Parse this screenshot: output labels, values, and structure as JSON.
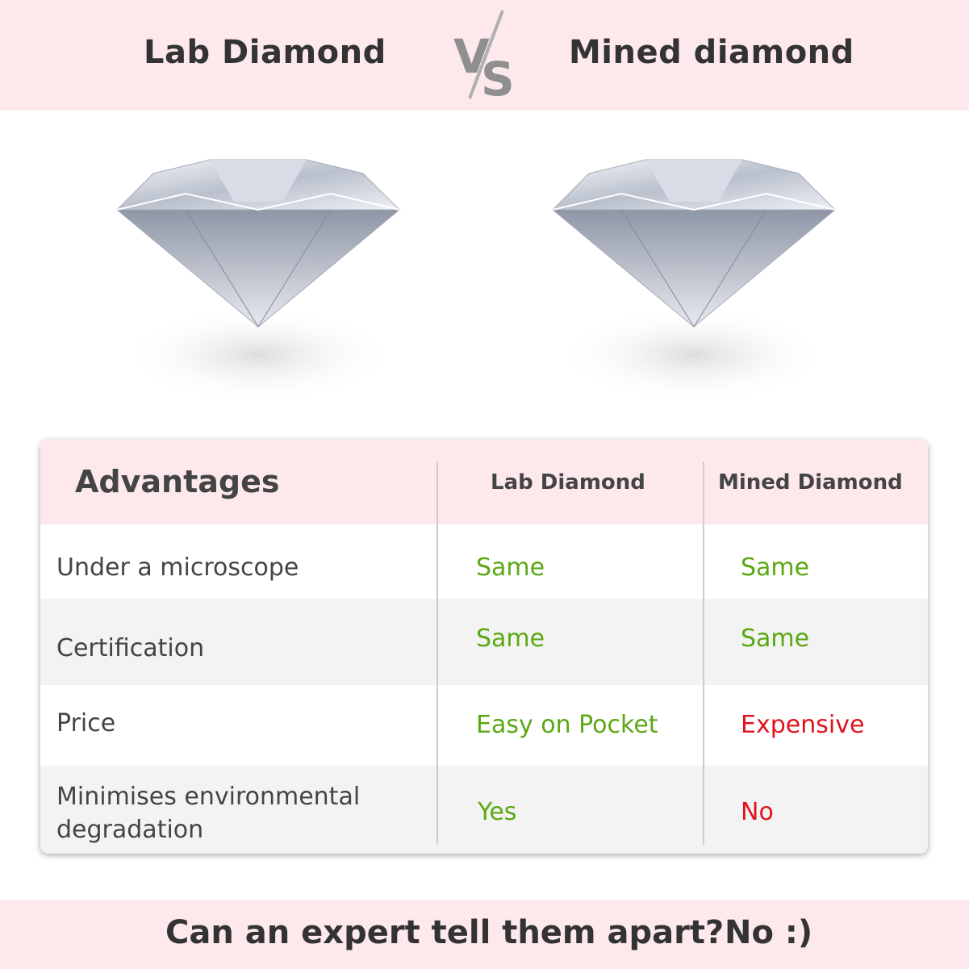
{
  "header": {
    "left_title": "Lab Diamond",
    "vs_label": "VS",
    "right_title": "Mined diamond"
  },
  "table": {
    "headers": [
      "Advantages",
      "Lab Diamond",
      "Mined Diamond"
    ],
    "rows": [
      {
        "label": "Under a microscope",
        "lab": "Same",
        "mined": "Same",
        "lab_status": "positive",
        "mined_status": "positive"
      },
      {
        "label": "Certification",
        "lab": "Same",
        "mined": "Same",
        "lab_status": "positive",
        "mined_status": "positive"
      },
      {
        "label": "Price",
        "lab": "Easy on Pocket",
        "mined": "Expensive",
        "lab_status": "positive",
        "mined_status": "negative"
      },
      {
        "label": "Minimises environmental degradation",
        "lab": "Yes",
        "mined": "No",
        "lab_status": "positive",
        "mined_status": "negative"
      }
    ]
  },
  "footer": {
    "question": "Can an expert tell them apart?",
    "answer": "No :)"
  },
  "colors": {
    "band": "#fde8ec",
    "positive": "#5aa812",
    "negative": "#e0141e",
    "row_alt": "#f3f3f3"
  }
}
